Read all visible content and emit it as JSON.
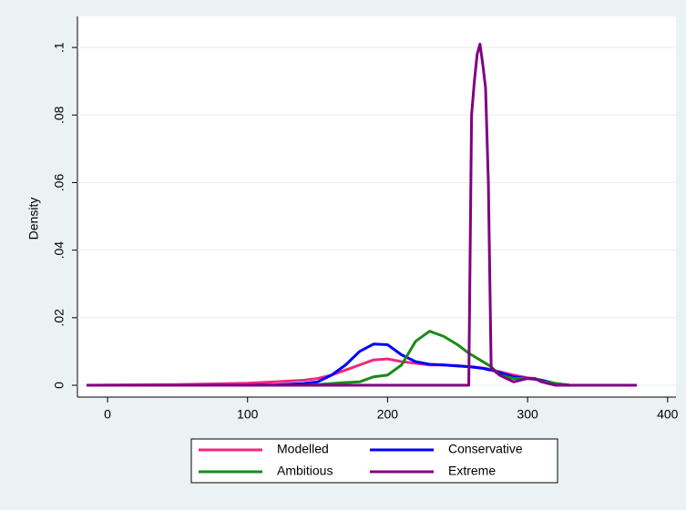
{
  "chart_data": {
    "type": "line",
    "y_label": "Density",
    "x": [
      -15,
      50,
      100,
      120,
      140,
      150,
      160,
      170,
      180,
      190,
      200,
      210,
      220,
      230,
      240,
      250,
      258,
      260,
      262,
      264,
      266,
      268,
      270,
      272,
      274,
      280,
      290,
      300,
      305,
      310,
      320,
      330,
      378
    ],
    "series": [
      {
        "name": "Modelled",
        "color": "#f0287e",
        "values": [
          0,
          0.0002,
          0.0006,
          0.001,
          0.0015,
          0.002,
          0.003,
          0.0045,
          0.006,
          0.0075,
          0.0078,
          0.007,
          0.0065,
          0.006,
          0.006,
          0.0058,
          0.0055,
          0.0055,
          0.0054,
          0.0053,
          0.0052,
          0.0051,
          0.005,
          0.0048,
          0.0046,
          0.004,
          0.003,
          0.0022,
          0.002,
          0.0015,
          0.0005,
          0,
          null
        ]
      },
      {
        "name": "Conservative",
        "color": "#0000ff",
        "values": [
          0,
          0,
          0,
          0.0001,
          0.0005,
          0.001,
          0.003,
          0.006,
          0.01,
          0.0122,
          0.012,
          0.009,
          0.007,
          0.0062,
          0.006,
          0.0057,
          0.0055,
          0.0054,
          0.0053,
          0.0052,
          0.0051,
          0.005,
          0.0048,
          0.0046,
          0.0045,
          0.0038,
          0.0025,
          0.002,
          0.0018,
          0.0015,
          0.0005,
          0,
          null
        ]
      },
      {
        "name": "Ambitious",
        "color": "#1a8a1a",
        "values": [
          0,
          0,
          0,
          0,
          0,
          0.0002,
          0.0005,
          0.0008,
          0.001,
          0.0025,
          0.003,
          0.006,
          0.013,
          0.016,
          0.0145,
          0.012,
          0.0095,
          0.009,
          0.0085,
          0.008,
          0.0075,
          0.007,
          0.0065,
          0.006,
          0.0055,
          0.003,
          0.002,
          0.002,
          0.002,
          0.0012,
          0.0005,
          0,
          null
        ]
      },
      {
        "name": "Extreme",
        "color": "#800080",
        "values": [
          0,
          0,
          0,
          0,
          0,
          0,
          0,
          0,
          0,
          0,
          0,
          0,
          0,
          0,
          0,
          0,
          0,
          0.08,
          0.09,
          0.098,
          0.101,
          0.095,
          0.088,
          0.06,
          0.005,
          0.003,
          0.001,
          0.002,
          0.002,
          0.001,
          0,
          0,
          0
        ]
      }
    ],
    "xlim": [
      -21.5,
      406
    ],
    "xticks": [
      0,
      100,
      200,
      300,
      400
    ],
    "ylim": [
      -0.0035,
      0.1092
    ],
    "yticks": [
      0,
      {
        "value": 0.02,
        "label": ".02"
      },
      {
        "value": 0.04,
        "label": ".04"
      },
      {
        "value": 0.06,
        "label": ".06"
      },
      {
        "value": 0.08,
        "label": ".08"
      },
      {
        "value": 0.1,
        "label": ".1"
      }
    ],
    "grid": true,
    "legend": "bottom"
  }
}
